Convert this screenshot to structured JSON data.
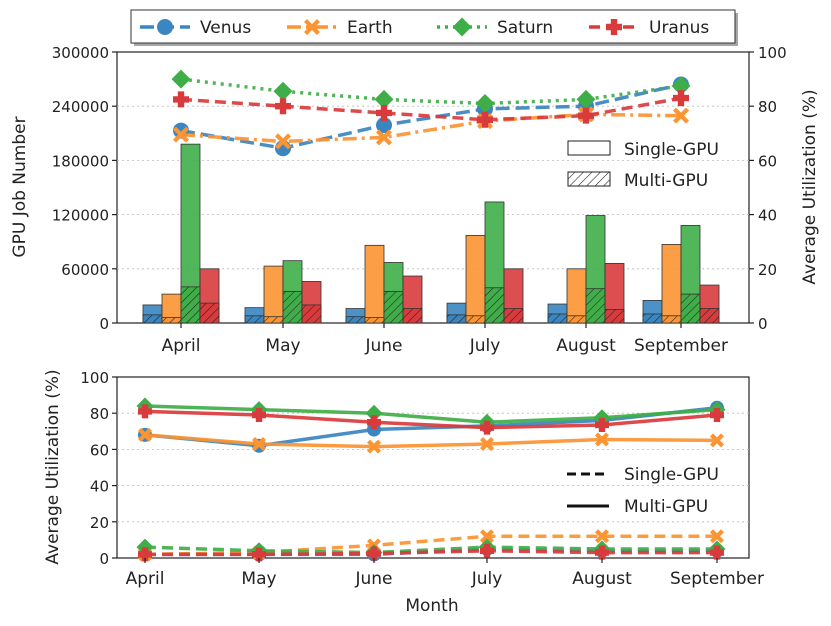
{
  "chart_data": [
    {
      "type": "bar+line",
      "title": "",
      "categories": [
        "April",
        "May",
        "June",
        "July",
        "August",
        "September"
      ],
      "ylabel": "GPU Job Number",
      "ylim": [
        0,
        300000
      ],
      "yticks": [
        "0",
        "60000",
        "120000",
        "180000",
        "240000",
        "300000"
      ],
      "ylabel_right": "Average Utilization (%)",
      "ylim_right": [
        0,
        100
      ],
      "yticks_right": [
        "0",
        "20",
        "40",
        "60",
        "80",
        "100"
      ],
      "legend": [
        "Venus",
        "Earth",
        "Saturn",
        "Uranus"
      ],
      "style_legend": [
        "Single-GPU",
        "Multi-GPU"
      ],
      "bars": [
        {
          "name": "Venus",
          "total": [
            20000,
            17000,
            16000,
            22000,
            21000,
            25000
          ],
          "multi": [
            9000,
            8000,
            7000,
            9000,
            10000,
            10000
          ]
        },
        {
          "name": "Earth",
          "total": [
            32000,
            63000,
            86000,
            97000,
            60000,
            87000
          ],
          "multi": [
            6000,
            7000,
            6000,
            8000,
            8000,
            8000
          ]
        },
        {
          "name": "Saturn",
          "total": [
            198000,
            69000,
            67000,
            134000,
            119000,
            108000
          ],
          "multi": [
            40000,
            35000,
            35000,
            39000,
            38000,
            32000
          ]
        },
        {
          "name": "Uranus",
          "total": [
            60000,
            46000,
            52000,
            60000,
            66000,
            42000
          ],
          "multi": [
            22000,
            20000,
            16000,
            16000,
            15000,
            16000
          ]
        }
      ],
      "lines": [
        {
          "name": "Venus",
          "values": [
            71,
            64.5,
            73,
            79,
            80,
            88
          ]
        },
        {
          "name": "Earth",
          "values": [
            69.5,
            67,
            68.5,
            74.5,
            77,
            76.5
          ]
        },
        {
          "name": "Saturn",
          "values": [
            90,
            85.5,
            82.5,
            81,
            82.5,
            87.5
          ]
        },
        {
          "name": "Uranus",
          "values": [
            82.5,
            80,
            77.5,
            75,
            76.5,
            83
          ]
        }
      ]
    },
    {
      "type": "line",
      "categories": [
        "April",
        "May",
        "June",
        "July",
        "August",
        "September"
      ],
      "xlabel": "Month",
      "ylabel": "Average Utilization (%)",
      "ylim": [
        0,
        100
      ],
      "yticks": [
        "0",
        "20",
        "40",
        "60",
        "80",
        "100"
      ],
      "style_legend": [
        "Single-GPU",
        "Multi-GPU"
      ],
      "series": [
        {
          "name": "Venus",
          "multi": [
            68,
            62,
            71,
            73,
            76,
            83
          ],
          "single": [
            2,
            2,
            2,
            5,
            4,
            4
          ]
        },
        {
          "name": "Earth",
          "multi": [
            68,
            63,
            61.5,
            63,
            65.5,
            65
          ],
          "single": [
            2,
            3,
            7,
            12,
            12,
            12
          ]
        },
        {
          "name": "Saturn",
          "multi": [
            84,
            82,
            80,
            75,
            77.5,
            82
          ],
          "single": [
            6,
            4,
            3,
            6,
            5,
            5
          ]
        },
        {
          "name": "Uranus",
          "multi": [
            81,
            79,
            75,
            72,
            73.5,
            79
          ],
          "single": [
            2,
            2,
            2.5,
            4,
            3,
            3
          ]
        }
      ]
    }
  ],
  "colors": {
    "Venus": "#3a86c0",
    "Earth": "#fb9432",
    "Saturn": "#3fae48",
    "Uranus": "#d93b3d"
  }
}
